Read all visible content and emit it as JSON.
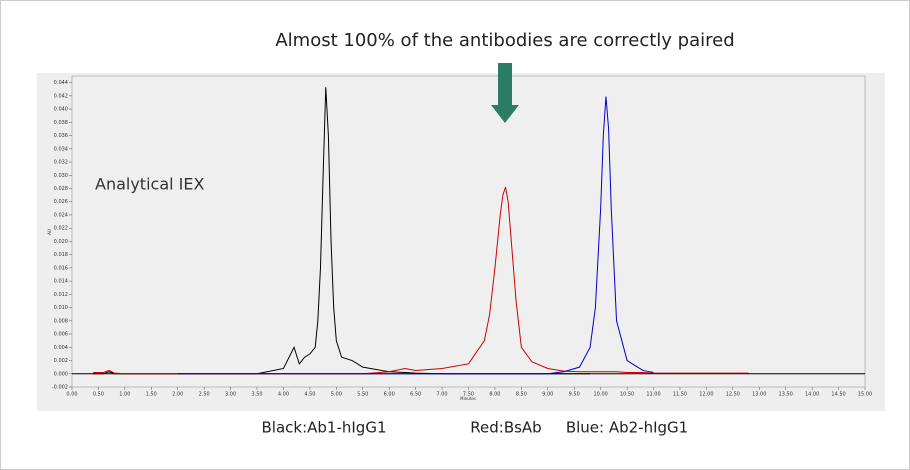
{
  "chart_data": {
    "type": "line",
    "title": "Almost 100% of the antibodies are correctly paired",
    "annotation": "Analytical IEX",
    "xlabel": "Minutes",
    "ylabel": "AU",
    "x": [
      0.4,
      0.6,
      0.7,
      0.8,
      1.0,
      1.5,
      2.0,
      2.5,
      3.0,
      3.5,
      4.0,
      4.2,
      4.3,
      4.4,
      4.5,
      4.6,
      4.65,
      4.7,
      4.75,
      4.8,
      4.85,
      4.9,
      4.95,
      5.0,
      5.1,
      5.3,
      5.5,
      6.0,
      6.3,
      6.5,
      7.0,
      7.5,
      7.8,
      7.9,
      8.0,
      8.1,
      8.15,
      8.2,
      8.25,
      8.3,
      8.4,
      8.5,
      8.7,
      9.0,
      9.3,
      9.6,
      9.8,
      9.9,
      10.0,
      10.05,
      10.1,
      10.15,
      10.2,
      10.3,
      10.5,
      10.8,
      11.0,
      11.5,
      12.0,
      12.8
    ],
    "series": [
      {
        "name": "Black:Ab1-hIgG1",
        "color": "#000000",
        "values": [
          0,
          0,
          0.0003,
          0,
          0,
          0,
          0,
          0,
          0,
          0,
          0.0008,
          0.004,
          0.0015,
          0.0025,
          0.003,
          0.004,
          0.008,
          0.016,
          0.03,
          0.0433,
          0.036,
          0.02,
          0.01,
          0.005,
          0.0025,
          0.002,
          0.001,
          0.0003,
          0.0002,
          0.0001,
          0,
          0,
          0,
          0,
          0,
          0,
          0,
          0,
          0,
          0,
          0,
          0,
          0,
          0,
          0,
          0,
          0,
          null,
          null,
          null,
          null,
          null,
          null,
          null,
          null,
          null,
          null,
          null,
          null,
          null
        ]
      },
      {
        "name": "Red:BsAb",
        "color": "#cc0000",
        "values": [
          0.0002,
          0.0002,
          0.0005,
          0.0001,
          0,
          0,
          0,
          0,
          0,
          0,
          0,
          0,
          0,
          0,
          0,
          0,
          0,
          0,
          0,
          0,
          0,
          0,
          0,
          0,
          0,
          0,
          0,
          0.0003,
          0.0008,
          0.0005,
          0.0008,
          0.0015,
          0.005,
          0.009,
          0.016,
          0.024,
          0.027,
          0.0282,
          0.026,
          0.021,
          0.011,
          0.004,
          0.0018,
          0.0008,
          0.0004,
          0.0003,
          0.0003,
          0.0003,
          0.0003,
          0.0003,
          0.0003,
          0.0003,
          0.0003,
          0.0003,
          0.0002,
          0.0002,
          0.0001,
          0.0001,
          0.0001,
          0.0001
        ]
      },
      {
        "name": "Blue: Ab2-hIgG1",
        "color": "#0000cc",
        "values": [
          null,
          null,
          null,
          null,
          null,
          null,
          0,
          0,
          0,
          0,
          0,
          0,
          0,
          0,
          0,
          0,
          0,
          0,
          0,
          0,
          0,
          0,
          0,
          0,
          0,
          0,
          0,
          0,
          0,
          0,
          0,
          0,
          0,
          0,
          0,
          0,
          0,
          0,
          0,
          0,
          0,
          0,
          0,
          0,
          0.0003,
          0.001,
          0.004,
          0.01,
          0.025,
          0.036,
          0.0419,
          0.037,
          0.025,
          0.008,
          0.002,
          0.0005,
          0.0002,
          null,
          null,
          null
        ]
      }
    ],
    "xlim": [
      0,
      15
    ],
    "ylim": [
      -0.002,
      0.045
    ],
    "xticks": [
      {
        "value": 0,
        "label": "0.00"
      },
      {
        "value": 0.5,
        "label": "0.50"
      },
      {
        "value": 1,
        "label": "1.00"
      },
      {
        "value": 1.5,
        "label": "1.50"
      },
      {
        "value": 2,
        "label": "2.00"
      },
      {
        "value": 2.5,
        "label": "2.50"
      },
      {
        "value": 3,
        "label": "3.00"
      },
      {
        "value": 3.5,
        "label": "3.50"
      },
      {
        "value": 4,
        "label": "4.00"
      },
      {
        "value": 4.5,
        "label": "4.50"
      },
      {
        "value": 5,
        "label": "5.00"
      },
      {
        "value": 5.5,
        "label": "5.50"
      },
      {
        "value": 6,
        "label": "6.00"
      },
      {
        "value": 6.5,
        "label": "6.50"
      },
      {
        "value": 7,
        "label": "7.00"
      },
      {
        "value": 7.5,
        "label": "7.50"
      },
      {
        "value": 8,
        "label": "8.00"
      },
      {
        "value": 8.5,
        "label": "8.50"
      },
      {
        "value": 9,
        "label": "9.00"
      },
      {
        "value": 9.5,
        "label": "9.50"
      },
      {
        "value": 10,
        "label": "10.00"
      },
      {
        "value": 10.5,
        "label": "10.50"
      },
      {
        "value": 11,
        "label": "11.00"
      },
      {
        "value": 11.5,
        "label": "11.50"
      },
      {
        "value": 12,
        "label": "12.00"
      },
      {
        "value": 12.5,
        "label": "12.50"
      },
      {
        "value": 13,
        "label": "13.00"
      },
      {
        "value": 13.5,
        "label": "13.50"
      },
      {
        "value": 14,
        "label": "14.00"
      },
      {
        "value": 14.5,
        "label": "14.50"
      },
      {
        "value": 15,
        "label": "15.00"
      }
    ],
    "yticks": [
      -0.002,
      {
        "value": 0,
        "label": "0.000"
      },
      0.002,
      0.004,
      0.006,
      0.008,
      {
        "value": 0.01,
        "label": "0.010"
      },
      0.012,
      0.014,
      0.016,
      0.018,
      {
        "value": 0.02,
        "label": "0.020"
      },
      0.022,
      0.024,
      0.026,
      0.028,
      {
        "value": 0.03,
        "label": "0.030"
      },
      0.032,
      0.034,
      0.036,
      0.038,
      {
        "value": 0.04,
        "label": "0.040"
      },
      0.042,
      0.044
    ]
  }
}
